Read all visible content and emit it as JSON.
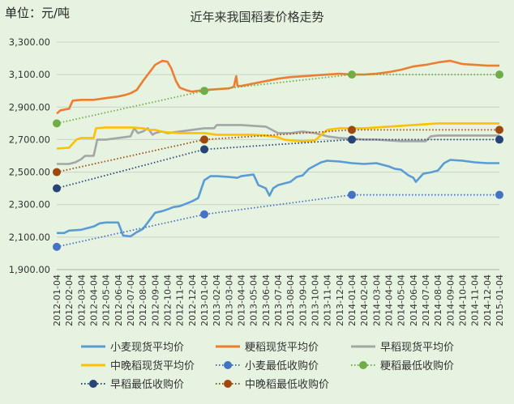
{
  "chart_data": {
    "type": "line",
    "title": "近年来我国稻麦价格走势",
    "unit_label": "单位：元/吨",
    "ylim": [
      1900,
      3300
    ],
    "yticks": [
      "1,900.00",
      "2,100.00",
      "2,300.00",
      "2,500.00",
      "2,700.00",
      "2,900.00",
      "3,100.00",
      "3,300.00"
    ],
    "ytick_values": [
      1900,
      2100,
      2300,
      2500,
      2700,
      2900,
      3100,
      3300
    ],
    "grid": true,
    "legend_position": "bottom",
    "x_labels": [
      "2012-01-04",
      "2012-02-04",
      "2012-03-04",
      "2012-04-04",
      "2012-05-04",
      "2012-06-04",
      "2012-07-04",
      "2012-08-04",
      "2012-09-04",
      "2012-10-04",
      "2012-11-04",
      "2012-12-04",
      "2013-01-04",
      "2013-02-04",
      "2013-03-04",
      "2013-04-04",
      "2013-05-04",
      "2013-06-04",
      "2013-07-04",
      "2013-08-04",
      "2013-09-04",
      "2013-10-04",
      "2013-11-04",
      "2013-12-04",
      "2014-01-04",
      "2014-02-04",
      "2014-03-04",
      "2014-04-04",
      "2014-05-04",
      "2014-06-04",
      "2014-07-04",
      "2014-08-04",
      "2014-09-04",
      "2014-10-04",
      "2014-11-04",
      "2014-12-04",
      "2015-01-04"
    ],
    "series": [
      {
        "name": "小麦现货平均价",
        "color": "#5b9bd5",
        "style": "solid",
        "points": [
          [
            0,
            2125
          ],
          [
            0.6,
            2125
          ],
          [
            1,
            2140
          ],
          [
            2,
            2145
          ],
          [
            3,
            2165
          ],
          [
            3.5,
            2185
          ],
          [
            4,
            2190
          ],
          [
            5,
            2190
          ],
          [
            5.4,
            2110
          ],
          [
            6,
            2105
          ],
          [
            6.5,
            2130
          ],
          [
            7,
            2150
          ],
          [
            7.5,
            2200
          ],
          [
            8,
            2250
          ],
          [
            8.6,
            2260
          ],
          [
            9,
            2270
          ],
          [
            9.5,
            2285
          ],
          [
            10,
            2290
          ],
          [
            10.5,
            2305
          ],
          [
            11,
            2320
          ],
          [
            11.5,
            2340
          ],
          [
            12,
            2450
          ],
          [
            12.5,
            2475
          ],
          [
            13,
            2475
          ],
          [
            14,
            2470
          ],
          [
            14.7,
            2465
          ],
          [
            15,
            2475
          ],
          [
            16,
            2485
          ],
          [
            16.4,
            2420
          ],
          [
            17,
            2400
          ],
          [
            17.3,
            2355
          ],
          [
            17.6,
            2400
          ],
          [
            18,
            2420
          ],
          [
            19,
            2440
          ],
          [
            19.5,
            2470
          ],
          [
            20,
            2480
          ],
          [
            20.5,
            2520
          ],
          [
            21,
            2540
          ],
          [
            21.5,
            2560
          ],
          [
            22,
            2570
          ],
          [
            23,
            2565
          ],
          [
            24,
            2555
          ],
          [
            25,
            2550
          ],
          [
            26,
            2555
          ],
          [
            26.5,
            2545
          ],
          [
            27,
            2535
          ],
          [
            27.5,
            2520
          ],
          [
            28,
            2515
          ],
          [
            28.6,
            2480
          ],
          [
            29,
            2465
          ],
          [
            29.2,
            2440
          ],
          [
            29.8,
            2490
          ],
          [
            30.5,
            2500
          ],
          [
            31,
            2510
          ],
          [
            31.5,
            2555
          ],
          [
            32,
            2575
          ],
          [
            33,
            2570
          ],
          [
            34,
            2560
          ],
          [
            35,
            2555
          ],
          [
            36,
            2555
          ]
        ]
      },
      {
        "name": "粳稻现货平均价",
        "color": "#ed7d31",
        "style": "solid",
        "points": [
          [
            0,
            2860
          ],
          [
            0.3,
            2880
          ],
          [
            1,
            2890
          ],
          [
            1.3,
            2940
          ],
          [
            2,
            2945
          ],
          [
            3,
            2945
          ],
          [
            4,
            2955
          ],
          [
            5,
            2965
          ],
          [
            5.6,
            2975
          ],
          [
            6,
            2985
          ],
          [
            6.5,
            3005
          ],
          [
            7,
            3060
          ],
          [
            7.5,
            3110
          ],
          [
            8,
            3160
          ],
          [
            8.6,
            3185
          ],
          [
            9,
            3180
          ],
          [
            9.3,
            3140
          ],
          [
            9.7,
            3060
          ],
          [
            10,
            3020
          ],
          [
            10.5,
            3005
          ],
          [
            11,
            2995
          ],
          [
            12,
            3005
          ],
          [
            13,
            3010
          ],
          [
            14,
            3015
          ],
          [
            14.4,
            3025
          ],
          [
            14.6,
            3090
          ],
          [
            14.7,
            3030
          ],
          [
            15,
            3030
          ],
          [
            16,
            3045
          ],
          [
            17,
            3060
          ],
          [
            18,
            3075
          ],
          [
            19,
            3085
          ],
          [
            20,
            3090
          ],
          [
            21,
            3095
          ],
          [
            22,
            3100
          ],
          [
            23,
            3105
          ],
          [
            24,
            3100
          ],
          [
            25,
            3100
          ],
          [
            26,
            3105
          ],
          [
            27,
            3115
          ],
          [
            28,
            3130
          ],
          [
            29,
            3150
          ],
          [
            30,
            3160
          ],
          [
            31,
            3175
          ],
          [
            32,
            3185
          ],
          [
            32.5,
            3175
          ],
          [
            33,
            3165
          ],
          [
            34,
            3160
          ],
          [
            35,
            3155
          ],
          [
            36,
            3155
          ]
        ]
      },
      {
        "name": "早稻现货平均价",
        "color": "#a5a5a5",
        "style": "solid",
        "points": [
          [
            0,
            2550
          ],
          [
            1,
            2550
          ],
          [
            1.5,
            2560
          ],
          [
            2,
            2580
          ],
          [
            2.3,
            2600
          ],
          [
            3,
            2600
          ],
          [
            3.3,
            2700
          ],
          [
            4,
            2700
          ],
          [
            5,
            2710
          ],
          [
            6,
            2720
          ],
          [
            6.3,
            2770
          ],
          [
            6.6,
            2740
          ],
          [
            7,
            2750
          ],
          [
            7.4,
            2770
          ],
          [
            7.8,
            2730
          ],
          [
            8,
            2740
          ],
          [
            8.5,
            2750
          ],
          [
            9,
            2740
          ],
          [
            10,
            2750
          ],
          [
            11,
            2760
          ],
          [
            12,
            2770
          ],
          [
            12.8,
            2770
          ],
          [
            13,
            2790
          ],
          [
            14,
            2790
          ],
          [
            15,
            2790
          ],
          [
            16,
            2785
          ],
          [
            17,
            2780
          ],
          [
            17.5,
            2760
          ],
          [
            18,
            2740
          ],
          [
            19,
            2740
          ],
          [
            20,
            2750
          ],
          [
            21,
            2740
          ],
          [
            22,
            2720
          ],
          [
            23,
            2710
          ],
          [
            24,
            2705
          ],
          [
            25,
            2700
          ],
          [
            26,
            2700
          ],
          [
            27,
            2695
          ],
          [
            28,
            2690
          ],
          [
            29,
            2690
          ],
          [
            30,
            2690
          ],
          [
            30.4,
            2720
          ],
          [
            31,
            2725
          ],
          [
            32,
            2725
          ],
          [
            33,
            2725
          ],
          [
            34,
            2725
          ],
          [
            35,
            2725
          ],
          [
            36,
            2725
          ]
        ]
      },
      {
        "name": "中晚稻现货平均价",
        "color": "#ffc000",
        "style": "solid",
        "points": [
          [
            0,
            2645
          ],
          [
            1,
            2650
          ],
          [
            1.6,
            2700
          ],
          [
            2,
            2710
          ],
          [
            3,
            2710
          ],
          [
            3.2,
            2770
          ],
          [
            4,
            2775
          ],
          [
            5,
            2775
          ],
          [
            6,
            2775
          ],
          [
            7,
            2770
          ],
          [
            7.5,
            2760
          ],
          [
            8,
            2760
          ],
          [
            8.5,
            2750
          ],
          [
            9,
            2745
          ],
          [
            10,
            2740
          ],
          [
            11,
            2740
          ],
          [
            12,
            2740
          ],
          [
            13,
            2730
          ],
          [
            14,
            2730
          ],
          [
            15,
            2730
          ],
          [
            16,
            2730
          ],
          [
            17,
            2725
          ],
          [
            18,
            2715
          ],
          [
            18.5,
            2700
          ],
          [
            19,
            2695
          ],
          [
            20,
            2690
          ],
          [
            21,
            2695
          ],
          [
            22,
            2760
          ],
          [
            23,
            2770
          ],
          [
            24,
            2770
          ],
          [
            25,
            2770
          ],
          [
            26,
            2775
          ],
          [
            27,
            2780
          ],
          [
            28,
            2785
          ],
          [
            29,
            2790
          ],
          [
            30,
            2795
          ],
          [
            31,
            2800
          ],
          [
            32,
            2800
          ],
          [
            33,
            2800
          ],
          [
            34,
            2800
          ],
          [
            35,
            2800
          ],
          [
            36,
            2800
          ]
        ]
      },
      {
        "name": "小麦最低收购价",
        "color": "#4472c4",
        "style": "dotted",
        "markers": [
          [
            0,
            2040
          ],
          [
            12,
            2240
          ],
          [
            24,
            2360
          ],
          [
            36,
            2360
          ]
        ]
      },
      {
        "name": "粳稻最低收购价",
        "color": "#70ad47",
        "style": "dotted",
        "markers": [
          [
            0,
            2800
          ],
          [
            12,
            3000
          ],
          [
            24,
            3100
          ],
          [
            36,
            3100
          ]
        ]
      },
      {
        "name": "早稻最低收购价",
        "color": "#264478",
        "style": "dotted",
        "markers": [
          [
            0,
            2400
          ],
          [
            12,
            2640
          ],
          [
            24,
            2700
          ],
          [
            36,
            2700
          ]
        ]
      },
      {
        "name": "中晚稻最低收购价",
        "color": "#9e480e",
        "style": "dotted",
        "markers": [
          [
            0,
            2500
          ],
          [
            12,
            2700
          ],
          [
            24,
            2760
          ],
          [
            36,
            2760
          ]
        ]
      }
    ]
  }
}
